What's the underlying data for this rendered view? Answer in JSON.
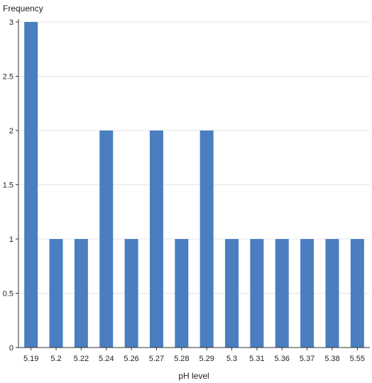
{
  "chart_data": {
    "type": "bar",
    "title": "",
    "xlabel": "pH level",
    "ylabel": "Frequency",
    "categories": [
      "5.19",
      "5.2",
      "5.22",
      "5.24",
      "5.26",
      "5.27",
      "5.28",
      "5.29",
      "5.3",
      "5.31",
      "5.36",
      "5.37",
      "5.38",
      "5.55"
    ],
    "values": [
      3,
      1,
      1,
      2,
      1,
      2,
      1,
      2,
      1,
      1,
      1,
      1,
      1,
      1
    ],
    "ylim": [
      0,
      3
    ],
    "yticks": [
      "0",
      "0.5",
      "1",
      "1.5",
      "2",
      "2.5",
      "3"
    ],
    "grid": true,
    "bar_color": "#4a7ec1"
  }
}
